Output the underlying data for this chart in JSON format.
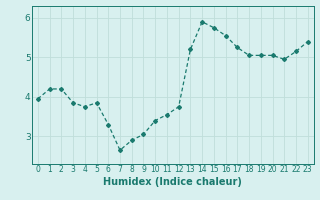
{
  "x": [
    0,
    1,
    2,
    3,
    4,
    5,
    6,
    7,
    8,
    9,
    10,
    11,
    12,
    13,
    14,
    15,
    16,
    17,
    18,
    19,
    20,
    21,
    22,
    23
  ],
  "y": [
    3.95,
    4.2,
    4.2,
    3.85,
    3.75,
    3.85,
    3.3,
    2.65,
    2.9,
    3.05,
    3.4,
    3.55,
    3.75,
    5.2,
    5.9,
    5.75,
    5.55,
    5.25,
    5.05,
    5.05,
    5.05,
    4.95,
    5.15,
    5.4
  ],
  "xlim": [
    -0.5,
    23.5
  ],
  "ylim": [
    2.3,
    6.3
  ],
  "yticks": [
    3,
    4,
    5,
    6
  ],
  "xticks": [
    0,
    1,
    2,
    3,
    4,
    5,
    6,
    7,
    8,
    9,
    10,
    11,
    12,
    13,
    14,
    15,
    16,
    17,
    18,
    19,
    20,
    21,
    22,
    23
  ],
  "xlabel": "Humidex (Indice chaleur)",
  "line_color": "#1a7a6e",
  "marker": "D",
  "marker_size": 2.0,
  "bg_color": "#d8f0ef",
  "grid_color": "#c0deda",
  "xlabel_fontsize": 7,
  "tick_fontsize": 5.5,
  "ytick_fontsize": 6.5,
  "linewidth": 0.9
}
